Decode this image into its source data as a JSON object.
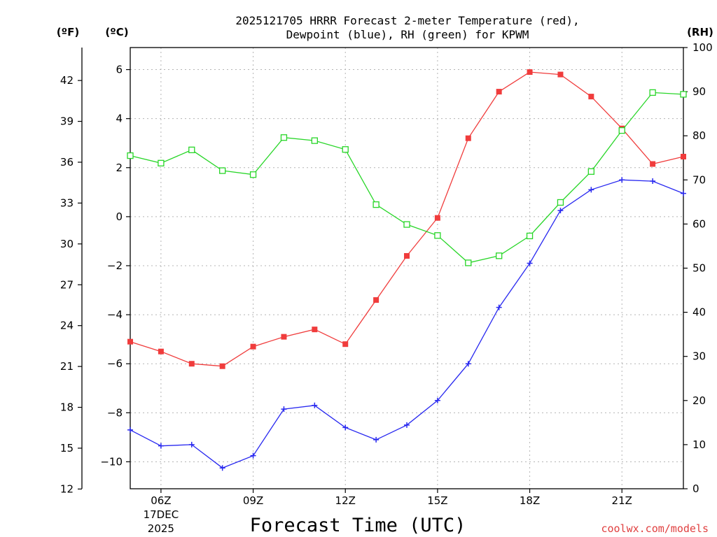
{
  "chart_data": {
    "type": "line",
    "title_lines": [
      "2025121705 HRRR Forecast 2-meter Temperature (red),",
      "Dewpoint (blue), RH (green) for KPWM"
    ],
    "xlabel": "Forecast Time (UTC)",
    "credit": "coolwx.com/models",
    "units": {
      "fahrenheit": "(ºF)",
      "celsius": "(ºC)",
      "rh": "(RH)"
    },
    "x": [
      5,
      6,
      7,
      8,
      9,
      10,
      11,
      12,
      13,
      14,
      15,
      16,
      17,
      18,
      19,
      20,
      21,
      22,
      23
    ],
    "xlim": [
      5,
      23
    ],
    "x_ticks": [
      {
        "x": 6,
        "label": "06Z",
        "sub": [
          "17DEC",
          "2025"
        ]
      },
      {
        "x": 9,
        "label": "09Z"
      },
      {
        "x": 12,
        "label": "12Z"
      },
      {
        "x": 15,
        "label": "15Z"
      },
      {
        "x": 18,
        "label": "18Z"
      },
      {
        "x": 21,
        "label": "21Z"
      }
    ],
    "celsius_axis": {
      "range": [
        -11.1,
        6.9
      ],
      "ticks": [
        -10,
        -8,
        -6,
        -4,
        -2,
        0,
        2,
        4,
        6
      ],
      "tick_labels": [
        "−10",
        "−8",
        "−6",
        "−4",
        "−2",
        "0",
        "2",
        "4",
        "6"
      ]
    },
    "fahrenheit_axis": {
      "ticks": [
        12,
        15,
        18,
        21,
        24,
        27,
        30,
        33,
        36,
        39,
        42
      ],
      "tick_labels": [
        "12",
        "15",
        "18",
        "21",
        "24",
        "27",
        "30",
        "33",
        "36",
        "39",
        "42"
      ]
    },
    "rh_axis": {
      "range": [
        0,
        100
      ],
      "ticks": [
        0,
        10,
        20,
        30,
        40,
        50,
        60,
        70,
        80,
        90,
        100
      ],
      "tick_labels": [
        "0",
        "10",
        "20",
        "30",
        "40",
        "50",
        "60",
        "70",
        "80",
        "90",
        "100"
      ]
    },
    "series": [
      {
        "name": "Temperature",
        "axis": "celsius",
        "color": "#f03c3c",
        "marker": "filled-square",
        "values": [
          -5.1,
          -5.5,
          -6.0,
          -6.1,
          -5.3,
          -4.9,
          -4.6,
          -5.2,
          -3.4,
          -1.6,
          -0.05,
          3.2,
          5.1,
          5.9,
          5.8,
          4.9,
          3.6,
          2.15,
          2.45
        ]
      },
      {
        "name": "Dewpoint",
        "axis": "celsius",
        "color": "#2828f0",
        "marker": "plus",
        "values": [
          -8.7,
          -9.35,
          -9.3,
          -10.25,
          -9.75,
          -7.85,
          -7.7,
          -8.6,
          -9.1,
          -8.5,
          -7.5,
          -6.0,
          -3.7,
          -1.9,
          0.25,
          1.1,
          1.5,
          1.45,
          0.95
        ]
      },
      {
        "name": "RH",
        "axis": "rh",
        "color": "#28d628",
        "marker": "open-square",
        "values": [
          75.5,
          73.8,
          76.8,
          72.1,
          71.2,
          79.6,
          78.9,
          76.9,
          64.4,
          59.9,
          57.4,
          51.2,
          52.8,
          57.3,
          64.9,
          71.9,
          81.2,
          89.8,
          89.4
        ]
      }
    ]
  }
}
